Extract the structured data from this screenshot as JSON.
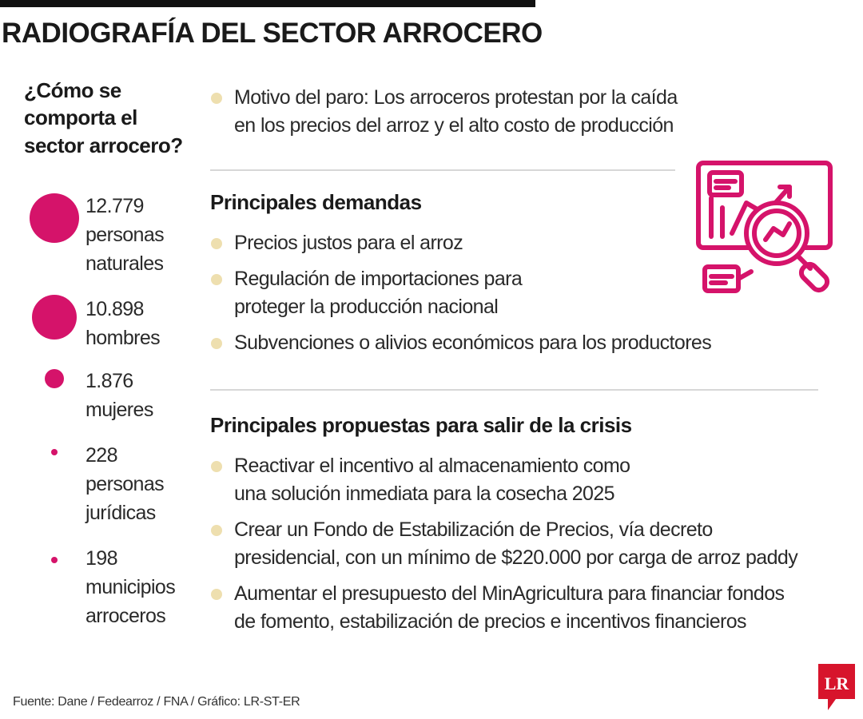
{
  "title": "RADIOGRAFÍA DEL SECTOR ARROCERO",
  "question": "¿Cómo se comporta el sector arrocero?",
  "stats": [
    {
      "value": "12.779",
      "label": "personas naturales"
    },
    {
      "value": "10.898",
      "label": "hombres"
    },
    {
      "value": "1.876",
      "label": "mujeres"
    },
    {
      "value": "228",
      "label": "personas jurídicas"
    },
    {
      "value": "198",
      "label": "municipios arroceros"
    }
  ],
  "motive": "Motivo del paro: Los arroceros protestan por la caída en los precios del arroz y el alto costo de producción",
  "demands": {
    "heading": "Principales demandas",
    "items": [
      "Precios justos para el arroz",
      "Regulación de importaciones para proteger la producción nacional",
      "Subvenciones o alivios económicos para los productores"
    ]
  },
  "proposals": {
    "heading": "Principales propuestas para salir de la crisis",
    "items": [
      "Reactivar el incentivo al almacenamiento como una solución inmediata para la cosecha 2025",
      "Crear un Fondo de Estabilización de Precios, vía decreto presidencial, con un mínimo de $220.000 por carga de arroz paddy",
      "Aumentar el presupuesto del MinAgricultura para financiar fondos de fomento, estabilización de precios e incentivos financieros"
    ]
  },
  "source": "Fuente: Dane / Fedearroz / FNA / Gráfico: LR-ST-ER",
  "logo_text": "LR",
  "illustration_icon": "chart-analysis-magnifier-icon",
  "colors": {
    "accent": "#d5136a",
    "bullet": "#eedfaf",
    "logo": "#d7142c"
  }
}
